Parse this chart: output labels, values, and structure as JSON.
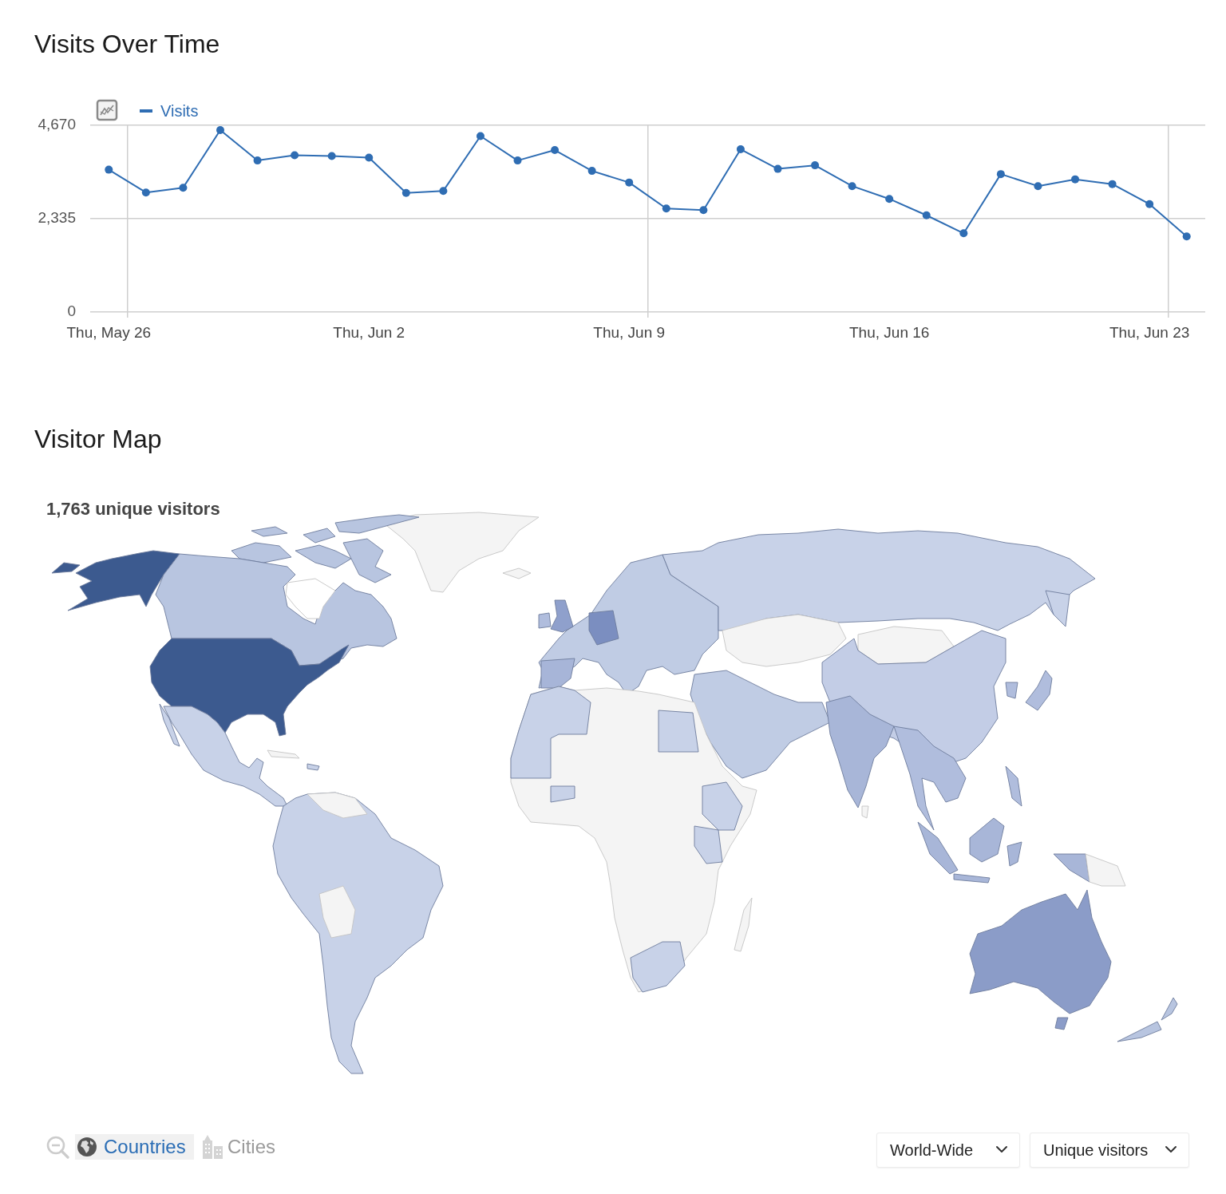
{
  "chart_data": [
    {
      "type": "line",
      "title": "Visits Over Time",
      "categories": [
        "Thu, May 26",
        null,
        null,
        null,
        null,
        null,
        null,
        "Thu, Jun 2",
        null,
        null,
        null,
        null,
        null,
        null,
        "Thu, Jun 9",
        null,
        null,
        null,
        null,
        null,
        null,
        "Thu, Jun 16",
        null,
        null,
        null,
        null,
        null,
        null,
        "Thu, Jun 23",
        null
      ],
      "series": [
        {
          "name": "Visits",
          "color": "#2f6db3",
          "values": [
            3560,
            2990,
            3110,
            4550,
            3790,
            3920,
            3900,
            3860,
            2980,
            3030,
            4400,
            3790,
            4050,
            3530,
            3240,
            2590,
            2550,
            4070,
            3580,
            3670,
            3150,
            2830,
            2420,
            1970,
            3450,
            3150,
            3320,
            3200,
            2700,
            1890
          ]
        }
      ],
      "ylim": [
        0,
        4670
      ],
      "yticks": [
        0,
        {
          "value": 2335,
          "label": "2,335"
        },
        {
          "value": 4670,
          "label": "4,670"
        }
      ],
      "grid": true,
      "legend": "top left",
      "marker": "circle"
    },
    {
      "type": "other",
      "title": "Visitor Map",
      "subtitle": "1,763 unique visitors",
      "annotations": [
        "Countries",
        "Cities",
        "World-Wide",
        "Unique visitors"
      ]
    }
  ]
}
